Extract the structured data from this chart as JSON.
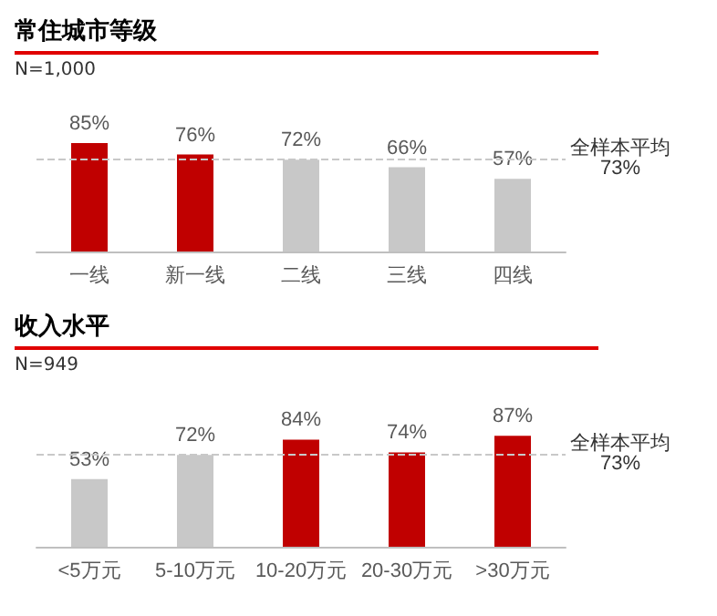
{
  "chart_data": [
    {
      "type": "bar",
      "title": "常住城市等级",
      "subtitle": "N=1,000",
      "categories": [
        "一线",
        "新一线",
        "二线",
        "三线",
        "四线"
      ],
      "values": [
        85,
        76,
        72,
        66,
        57
      ],
      "value_labels": [
        "85%",
        "76%",
        "72%",
        "66%",
        "57%"
      ],
      "colors": [
        "#c00000",
        "#c00000",
        "#c8c8c8",
        "#c8c8c8",
        "#c8c8c8"
      ],
      "ref_lines": [
        {
          "axis": "y",
          "value": 73,
          "label": "全样本平均\n73%",
          "color": "#c8c8c8",
          "line_style": "dashed"
        }
      ]
    },
    {
      "type": "bar",
      "title": "收入水平",
      "subtitle": "N=949",
      "categories": [
        "<5万元",
        "5-10万元",
        "10-20万元",
        "20-30万元",
        ">30万元"
      ],
      "values": [
        53,
        72,
        84,
        74,
        87
      ],
      "value_labels": [
        "53%",
        "72%",
        "84%",
        "74%",
        "87%"
      ],
      "colors": [
        "#c8c8c8",
        "#c8c8c8",
        "#c00000",
        "#c00000",
        "#c00000"
      ],
      "ref_lines": [
        {
          "axis": "y",
          "value": 73,
          "label": "全样本平均\n73%",
          "color": "#c8c8c8",
          "line_style": "dashed"
        }
      ]
    }
  ]
}
